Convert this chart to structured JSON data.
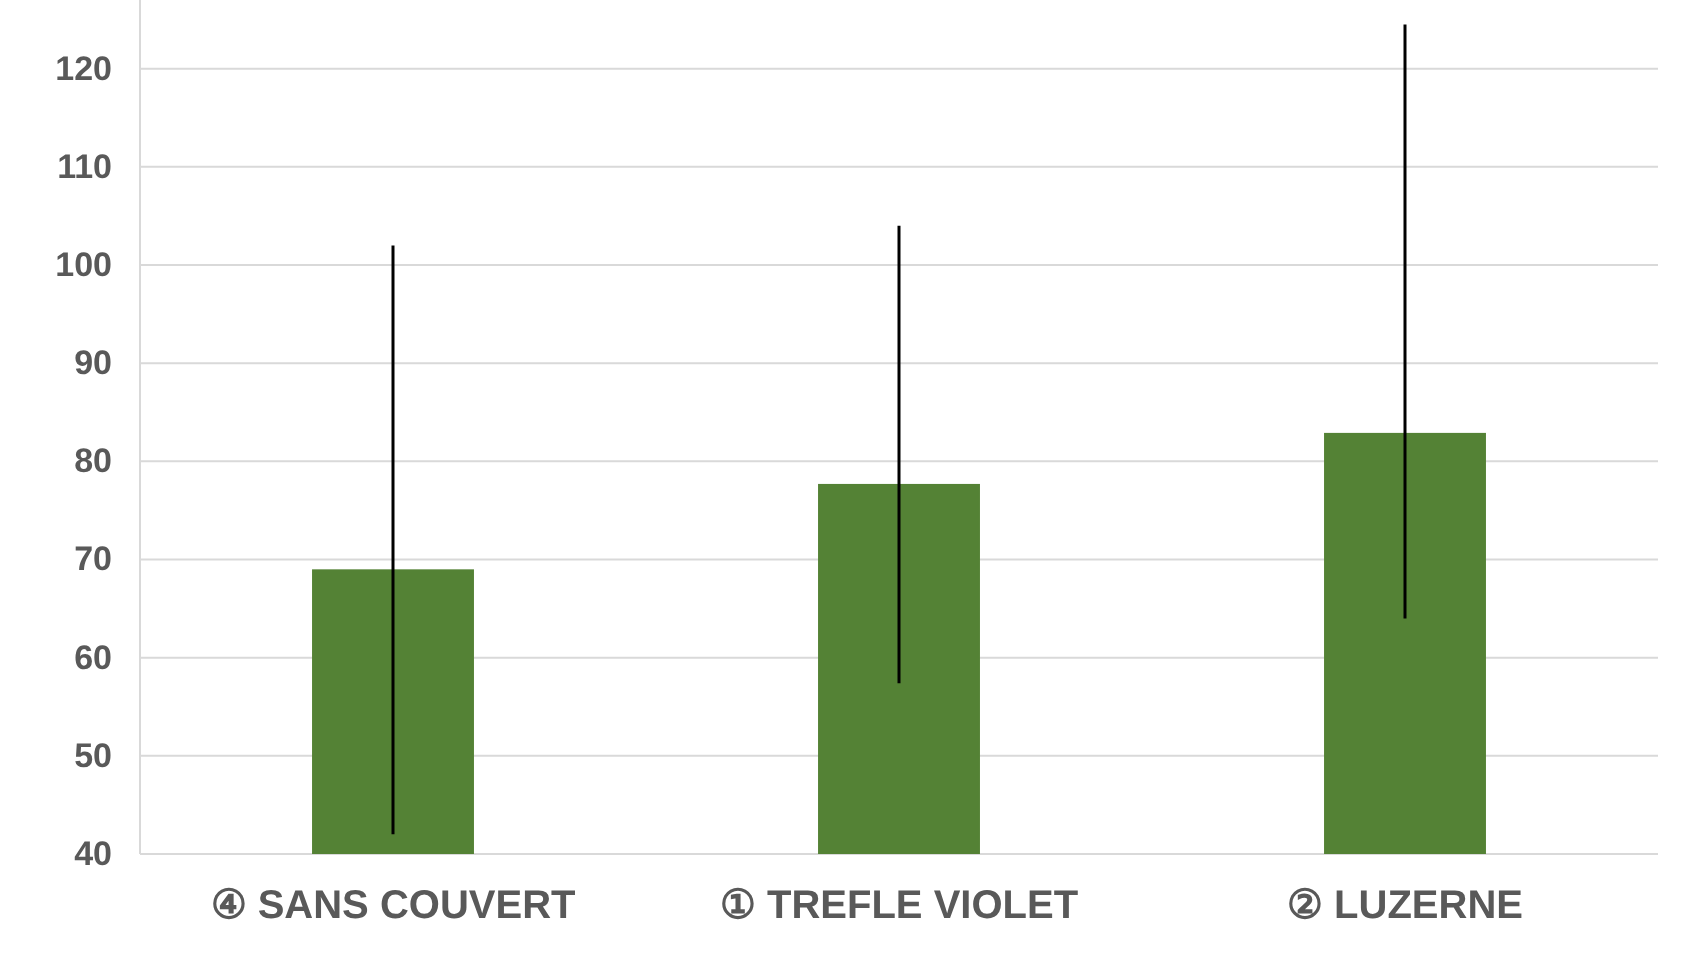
{
  "chart_data": {
    "type": "bar",
    "categories": [
      "④ SANS COUVERT",
      "① TREFLE VIOLET",
      "② LUZERNE"
    ],
    "values": [
      69,
      77.7,
      82.9
    ],
    "errors": [
      [
        42,
        102
      ],
      [
        57.4,
        104
      ],
      [
        64,
        124.5
      ]
    ],
    "color": "#548235",
    "ylim": [
      40,
      127
    ],
    "yticks": [
      40,
      50,
      60,
      70,
      80,
      90,
      100,
      110,
      120
    ],
    "grid": "y"
  }
}
